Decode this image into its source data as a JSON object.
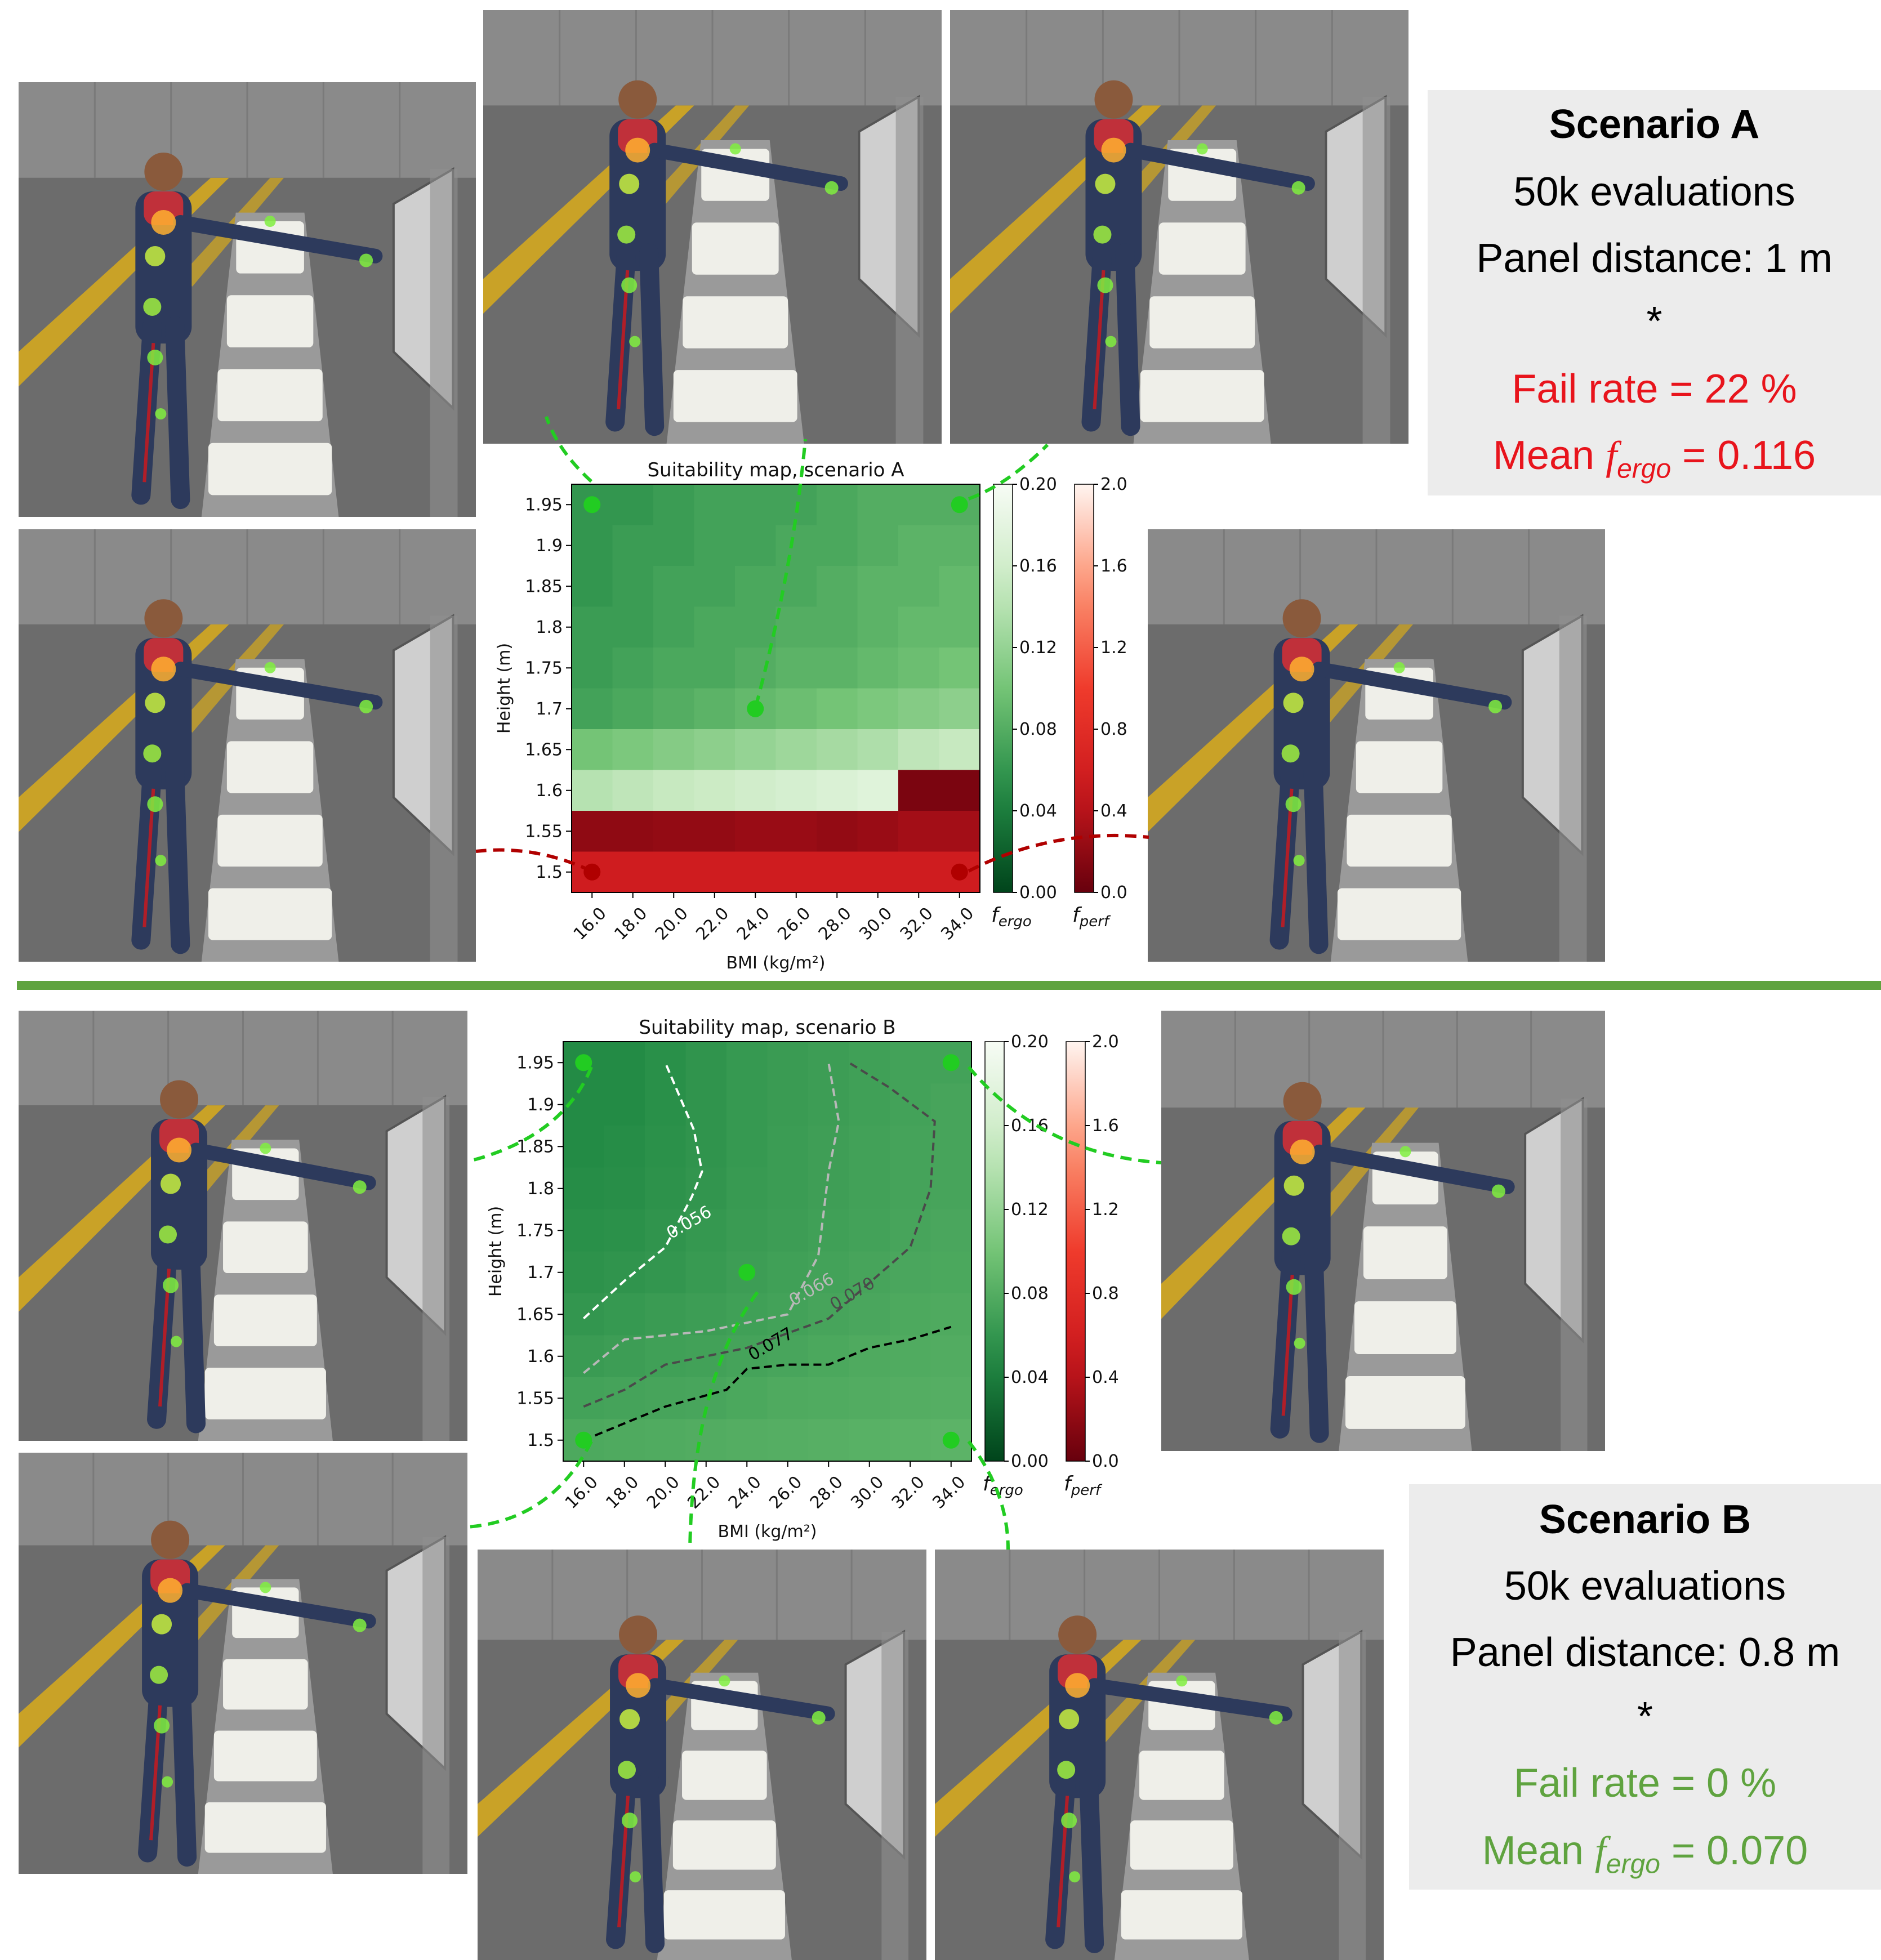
{
  "colors": {
    "scene_wall": "#8a8a8a",
    "scene_floor": "#6c6c6c",
    "floor_stripe": "#c9a227",
    "ok_marker": "#22cc22",
    "fail_marker": "#b00000",
    "separator": "#5fa33f",
    "fail_text": "#e8141c",
    "pass_text": "#5fa33f",
    "panel_bg": "#ececec"
  },
  "scenario_a": {
    "title": "Scenario A",
    "evaluations": "50k evaluations",
    "panel_distance": "Panel distance: 1 m",
    "separator": "*",
    "fail_rate": "Fail rate = 22 %",
    "mean_ergo_prefix": "Mean ",
    "mean_ergo_symbol": "f",
    "mean_ergo_sub": "ergo",
    "mean_ergo_value": " = 0.116"
  },
  "scenario_b": {
    "title": "Scenario B",
    "evaluations": "50k evaluations",
    "panel_distance": "Panel distance: 0.8 m",
    "separator": "*",
    "fail_rate": "Fail rate = 0 %",
    "mean_ergo_prefix": "Mean ",
    "mean_ergo_symbol": "f",
    "mean_ergo_sub": "ergo",
    "mean_ergo_value": " = 0.070"
  },
  "chart_data": [
    {
      "type": "heatmap",
      "title": "Suitability map, scenario A",
      "xlabel": "BMI (kg/m²)",
      "ylabel": "Height (m)",
      "x": [
        16.0,
        18.0,
        20.0,
        22.0,
        24.0,
        26.0,
        28.0,
        30.0,
        32.0,
        34.0
      ],
      "y": [
        1.95,
        1.9,
        1.85,
        1.8,
        1.75,
        1.7,
        1.65,
        1.6,
        1.55,
        1.5
      ],
      "x_ticks": [
        "16.0",
        "18.0",
        "20.0",
        "22.0",
        "24.0",
        "26.0",
        "28.0",
        "30.0",
        "32.0",
        "34.0"
      ],
      "y_ticks": [
        "1.95",
        "1.9",
        "1.85",
        "1.8",
        "1.75",
        "1.7",
        "1.65",
        "1.6",
        "1.55",
        "1.5"
      ],
      "values_ergo": [
        [
          0.06,
          0.06,
          0.065,
          0.07,
          0.07,
          0.07,
          0.075,
          0.08,
          0.08,
          0.08
        ],
        [
          0.06,
          0.065,
          0.065,
          0.07,
          0.07,
          0.075,
          0.075,
          0.08,
          0.085,
          0.085
        ],
        [
          0.06,
          0.065,
          0.07,
          0.07,
          0.075,
          0.075,
          0.08,
          0.085,
          0.085,
          0.09
        ],
        [
          0.065,
          0.065,
          0.07,
          0.075,
          0.075,
          0.08,
          0.08,
          0.085,
          0.09,
          0.09
        ],
        [
          0.065,
          0.07,
          0.075,
          0.075,
          0.08,
          0.085,
          0.085,
          0.09,
          0.095,
          0.1
        ],
        [
          0.07,
          0.075,
          0.08,
          0.085,
          0.09,
          0.095,
          0.1,
          0.105,
          0.11,
          0.115
        ],
        [
          0.1,
          0.105,
          0.11,
          0.115,
          0.12,
          0.125,
          0.13,
          0.135,
          0.145,
          0.15
        ],
        [
          0.14,
          0.145,
          0.15,
          0.155,
          0.16,
          0.165,
          0.17,
          0.175,
          null,
          null
        ],
        [
          null,
          null,
          null,
          null,
          null,
          null,
          null,
          null,
          null,
          null
        ],
        [
          null,
          null,
          null,
          null,
          null,
          null,
          null,
          null,
          null,
          null
        ]
      ],
      "values_perf": [
        [
          null,
          null,
          null,
          null,
          null,
          null,
          null,
          null,
          null,
          null
        ],
        [
          null,
          null,
          null,
          null,
          null,
          null,
          null,
          null,
          null,
          null
        ],
        [
          null,
          null,
          null,
          null,
          null,
          null,
          null,
          null,
          null,
          null
        ],
        [
          null,
          null,
          null,
          null,
          null,
          null,
          null,
          null,
          null,
          null
        ],
        [
          null,
          null,
          null,
          null,
          null,
          null,
          null,
          null,
          null,
          null
        ],
        [
          null,
          null,
          null,
          null,
          null,
          null,
          null,
          null,
          null,
          null
        ],
        [
          null,
          null,
          null,
          null,
          null,
          null,
          null,
          null,
          null,
          null
        ],
        [
          null,
          null,
          null,
          null,
          null,
          null,
          null,
          null,
          0.1,
          0.1
        ],
        [
          0.2,
          0.2,
          0.22,
          0.22,
          0.25,
          0.25,
          0.22,
          0.25,
          0.3,
          0.3
        ],
        [
          0.55,
          0.55,
          0.55,
          0.55,
          0.55,
          0.55,
          0.55,
          0.55,
          0.55,
          0.55
        ]
      ],
      "colorbar_ergo": {
        "label_symbol": "f",
        "label_sub": "ergo",
        "ticks": [
          "0.20",
          "0.16",
          "0.12",
          "0.08",
          "0.04",
          "0.00"
        ],
        "range": [
          0.0,
          0.2
        ]
      },
      "colorbar_perf": {
        "label_symbol": "f",
        "label_sub": "perf",
        "ticks": [
          "2.0",
          "1.6",
          "1.2",
          "0.8",
          "0.4",
          "0.0"
        ],
        "range": [
          0.0,
          2.0
        ]
      },
      "markers": [
        {
          "x": 16.0,
          "y": 1.95,
          "status": "ok"
        },
        {
          "x": 34.0,
          "y": 1.95,
          "status": "ok"
        },
        {
          "x": 24.0,
          "y": 1.7,
          "status": "ok"
        },
        {
          "x": 16.0,
          "y": 1.5,
          "status": "fail"
        },
        {
          "x": 34.0,
          "y": 1.5,
          "status": "fail"
        }
      ]
    },
    {
      "type": "heatmap",
      "title": "Suitability map, scenario B",
      "xlabel": "BMI (kg/m²)",
      "ylabel": "Height (m)",
      "x": [
        16.0,
        18.0,
        20.0,
        22.0,
        24.0,
        26.0,
        28.0,
        30.0,
        32.0,
        34.0
      ],
      "y": [
        1.95,
        1.9,
        1.85,
        1.8,
        1.75,
        1.7,
        1.65,
        1.6,
        1.55,
        1.5
      ],
      "x_ticks": [
        "16.0",
        "18.0",
        "20.0",
        "22.0",
        "24.0",
        "26.0",
        "28.0",
        "30.0",
        "32.0",
        "34.0"
      ],
      "y_ticks": [
        "1.95",
        "1.9",
        "1.85",
        "1.8",
        "1.75",
        "1.7",
        "1.65",
        "1.6",
        "1.55",
        "1.5"
      ],
      "values_ergo": [
        [
          0.05,
          0.05,
          0.054,
          0.058,
          0.062,
          0.064,
          0.066,
          0.068,
          0.07,
          0.07
        ],
        [
          0.05,
          0.05,
          0.054,
          0.058,
          0.062,
          0.064,
          0.066,
          0.068,
          0.07,
          0.072
        ],
        [
          0.05,
          0.052,
          0.055,
          0.058,
          0.062,
          0.065,
          0.067,
          0.069,
          0.071,
          0.072
        ],
        [
          0.052,
          0.053,
          0.056,
          0.059,
          0.063,
          0.065,
          0.067,
          0.069,
          0.071,
          0.072
        ],
        [
          0.054,
          0.055,
          0.058,
          0.061,
          0.064,
          0.066,
          0.068,
          0.07,
          0.072,
          0.074
        ],
        [
          0.056,
          0.058,
          0.06,
          0.063,
          0.066,
          0.068,
          0.07,
          0.072,
          0.074,
          0.075
        ],
        [
          0.06,
          0.062,
          0.064,
          0.066,
          0.068,
          0.07,
          0.072,
          0.074,
          0.076,
          0.077
        ],
        [
          0.064,
          0.066,
          0.068,
          0.069,
          0.071,
          0.073,
          0.075,
          0.077,
          0.078,
          0.079
        ],
        [
          0.07,
          0.071,
          0.072,
          0.073,
          0.075,
          0.077,
          0.078,
          0.079,
          0.08,
          0.081
        ],
        [
          0.076,
          0.077,
          0.078,
          0.079,
          0.08,
          0.081,
          0.082,
          0.083,
          0.084,
          0.085
        ]
      ],
      "contours": [
        {
          "label": "0.056",
          "color": "#ffffff",
          "points": [
            [
              16.0,
              1.645
            ],
            [
              18.0,
              1.69
            ],
            [
              20.0,
              1.73
            ],
            [
              21.3,
              1.79
            ],
            [
              21.8,
              1.82
            ],
            [
              21.4,
              1.87
            ],
            [
              20.0,
              1.95
            ]
          ]
        },
        {
          "label": "0.066",
          "color": "#b8b8b8",
          "points": [
            [
              16.0,
              1.58
            ],
            [
              18.0,
              1.62
            ],
            [
              22.0,
              1.63
            ],
            [
              26.0,
              1.65
            ],
            [
              27.5,
              1.72
            ],
            [
              28.0,
              1.82
            ],
            [
              28.5,
              1.88
            ],
            [
              28.0,
              1.95
            ]
          ]
        },
        {
          "label": "0.070",
          "color": "#4a4a4a",
          "points": [
            [
              16.0,
              1.54
            ],
            [
              18.0,
              1.56
            ],
            [
              20.0,
              1.59
            ],
            [
              24.0,
              1.61
            ],
            [
              28.0,
              1.645
            ],
            [
              32.0,
              1.73
            ],
            [
              33.0,
              1.8
            ],
            [
              33.2,
              1.88
            ],
            [
              31.0,
              1.92
            ],
            [
              29.0,
              1.95
            ]
          ]
        },
        {
          "label": "0.077",
          "color": "#000000",
          "points": [
            [
              16.0,
              1.5
            ],
            [
              18.0,
              1.52
            ],
            [
              20.0,
              1.54
            ],
            [
              23.0,
              1.56
            ],
            [
              24.0,
              1.585
            ],
            [
              26.0,
              1.59
            ],
            [
              28.0,
              1.59
            ],
            [
              30.0,
              1.61
            ],
            [
              32.0,
              1.62
            ],
            [
              34.0,
              1.635
            ]
          ]
        }
      ],
      "colorbar_ergo": {
        "label_symbol": "f",
        "label_sub": "ergo",
        "ticks": [
          "0.20",
          "0.16",
          "0.12",
          "0.08",
          "0.04",
          "0.00"
        ],
        "range": [
          0.0,
          0.2
        ]
      },
      "colorbar_perf": {
        "label_symbol": "f",
        "label_sub": "perf",
        "ticks": [
          "2.0",
          "1.6",
          "1.2",
          "0.8",
          "0.4",
          "0.0"
        ],
        "range": [
          0.0,
          2.0
        ]
      },
      "markers": [
        {
          "x": 16.0,
          "y": 1.95,
          "status": "ok"
        },
        {
          "x": 34.0,
          "y": 1.95,
          "status": "ok"
        },
        {
          "x": 24.0,
          "y": 1.7,
          "status": "ok"
        },
        {
          "x": 16.0,
          "y": 1.5,
          "status": "ok"
        },
        {
          "x": 34.0,
          "y": 1.5,
          "status": "ok"
        }
      ]
    }
  ]
}
